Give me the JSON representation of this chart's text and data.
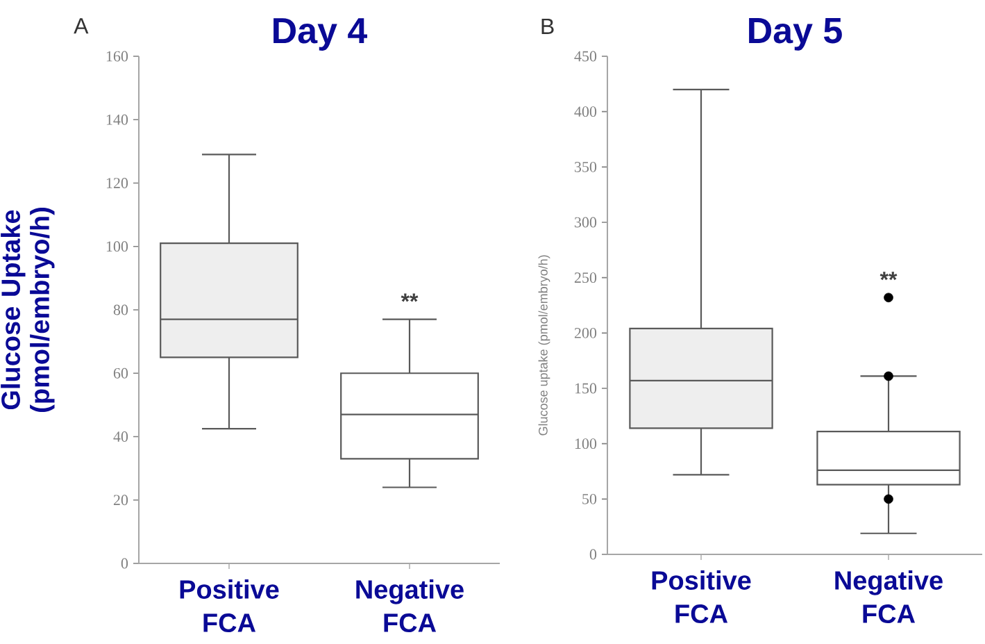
{
  "chart_data": [
    {
      "type": "box",
      "title": "Day 4",
      "ylabel": "Glucose Uptake (pmol/embryo/h)",
      "categories": [
        "Positive FCA",
        "Negative FCA"
      ],
      "boxes": [
        {
          "low": 42.5,
          "q1": 65,
          "median": 77,
          "q3": 101,
          "high": 129
        },
        {
          "low": 24,
          "q1": 33,
          "median": 47,
          "q3": 60,
          "high": 77
        }
      ],
      "colors": [
        "#eeeeee",
        "#ffffff"
      ],
      "ylim": [
        0,
        160
      ],
      "yticks": [
        0,
        20,
        40,
        60,
        80,
        100,
        120,
        140,
        160
      ],
      "annotations": [
        "A",
        "**"
      ]
    },
    {
      "type": "box",
      "title": "Day 5",
      "ylabel": "Glucose uptake (pmol/embryo/h)",
      "categories": [
        "Positive FCA",
        "Negative FCA"
      ],
      "boxes": [
        {
          "low": 72,
          "q1": 114,
          "median": 157,
          "q3": 204,
          "high": 420
        },
        {
          "low": 19,
          "q1": 63,
          "median": 76,
          "q3": 111,
          "high": 161,
          "outliers": [
            50,
            161,
            232
          ]
        }
      ],
      "colors": [
        "#eeeeee",
        "#ffffff"
      ],
      "ylim": [
        0,
        450
      ],
      "yticks": [
        0,
        50,
        100,
        150,
        200,
        250,
        300,
        350,
        400,
        450
      ],
      "annotations": [
        "B",
        "**"
      ]
    }
  ]
}
